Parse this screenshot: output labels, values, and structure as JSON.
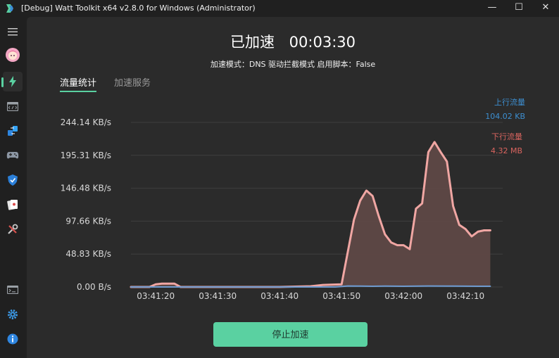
{
  "window": {
    "title": "[Debug] Watt Toolkit x64 v2.8.0 for Windows (Administrator)",
    "minimize_glyph": "—",
    "maximize_glyph": "☐",
    "close_glyph": "✕"
  },
  "sidebar": {
    "items": [
      {
        "icon": "hamburger-menu-icon"
      },
      {
        "icon": "user-avatar-icon"
      },
      {
        "icon": "lightning-accelerator-icon",
        "active": true
      },
      {
        "icon": "script-code-icon"
      },
      {
        "icon": "steam-account-switch-icon"
      },
      {
        "icon": "gamepad-icon"
      },
      {
        "icon": "shield-authenticator-icon"
      },
      {
        "icon": "cards-icon"
      },
      {
        "icon": "tools-icon"
      },
      {
        "icon": "terminal-icon"
      },
      {
        "icon": "settings-gear-icon"
      },
      {
        "icon": "about-info-icon"
      }
    ]
  },
  "status": {
    "label": "已加速",
    "elapsed": "00:03:30",
    "mode_line": "加速模式：DNS 驱动拦截模式   启用脚本：False"
  },
  "tabs": [
    {
      "label": "流量统计",
      "active": true
    },
    {
      "label": "加速服务",
      "active": false
    }
  ],
  "legend": {
    "upload_label": "上行流量",
    "upload_total": "104.02 KB",
    "upload_color": "#3d8fd1",
    "download_label": "下行流量",
    "download_total": "4.32 MB",
    "download_color": "#d9645f"
  },
  "chart_data": {
    "type": "area",
    "title": "",
    "xlabel": "",
    "ylabel": "",
    "y_ticks": [
      "0.00 B/s",
      "48.83 KB/s",
      "97.66 KB/s",
      "146.48 KB/s",
      "195.31 KB/s",
      "244.14 KB/s"
    ],
    "y_tick_values": [
      0,
      48.83,
      97.66,
      146.48,
      195.31,
      244.14
    ],
    "ylim": [
      0,
      244.14
    ],
    "x_ticks": [
      "03:41:20",
      "03:41:30",
      "03:41:40",
      "03:41:50",
      "03:42:00",
      "03:42:10"
    ],
    "x_tick_values": [
      0,
      10,
      20,
      30,
      40,
      50
    ],
    "xlim": [
      -4,
      56
    ],
    "grid": true,
    "series": [
      {
        "name": "下行流量",
        "color": "#f0a6a3",
        "fill": "#5e4846",
        "x": [
          -4,
          -1,
          0,
          1,
          3,
          4,
          8,
          14,
          20,
          25,
          27,
          30,
          32,
          33,
          34,
          35,
          36,
          37,
          38,
          39,
          40,
          41,
          42,
          43,
          44,
          45,
          46,
          47,
          48,
          49,
          50,
          51,
          52,
          53,
          54
        ],
        "y": [
          0,
          0,
          4,
          5,
          5,
          0,
          0,
          0,
          0,
          1,
          3,
          4,
          100,
          128,
          143,
          135,
          105,
          78,
          66,
          62,
          62,
          56,
          116,
          124,
          200,
          215,
          200,
          186,
          120,
          92,
          86,
          75,
          82,
          84,
          84
        ]
      },
      {
        "name": "上行流量",
        "color": "#6f9bd0",
        "fill": "#3a4a5e",
        "x": [
          -4,
          29,
          31,
          33,
          35,
          37,
          40,
          44,
          48,
          52,
          54
        ],
        "y": [
          0,
          0,
          1.5,
          1.2,
          1.0,
          1.2,
          1.0,
          1.5,
          1.2,
          1.0,
          1.0
        ]
      }
    ]
  },
  "actions": {
    "stop_label": "停止加速"
  }
}
